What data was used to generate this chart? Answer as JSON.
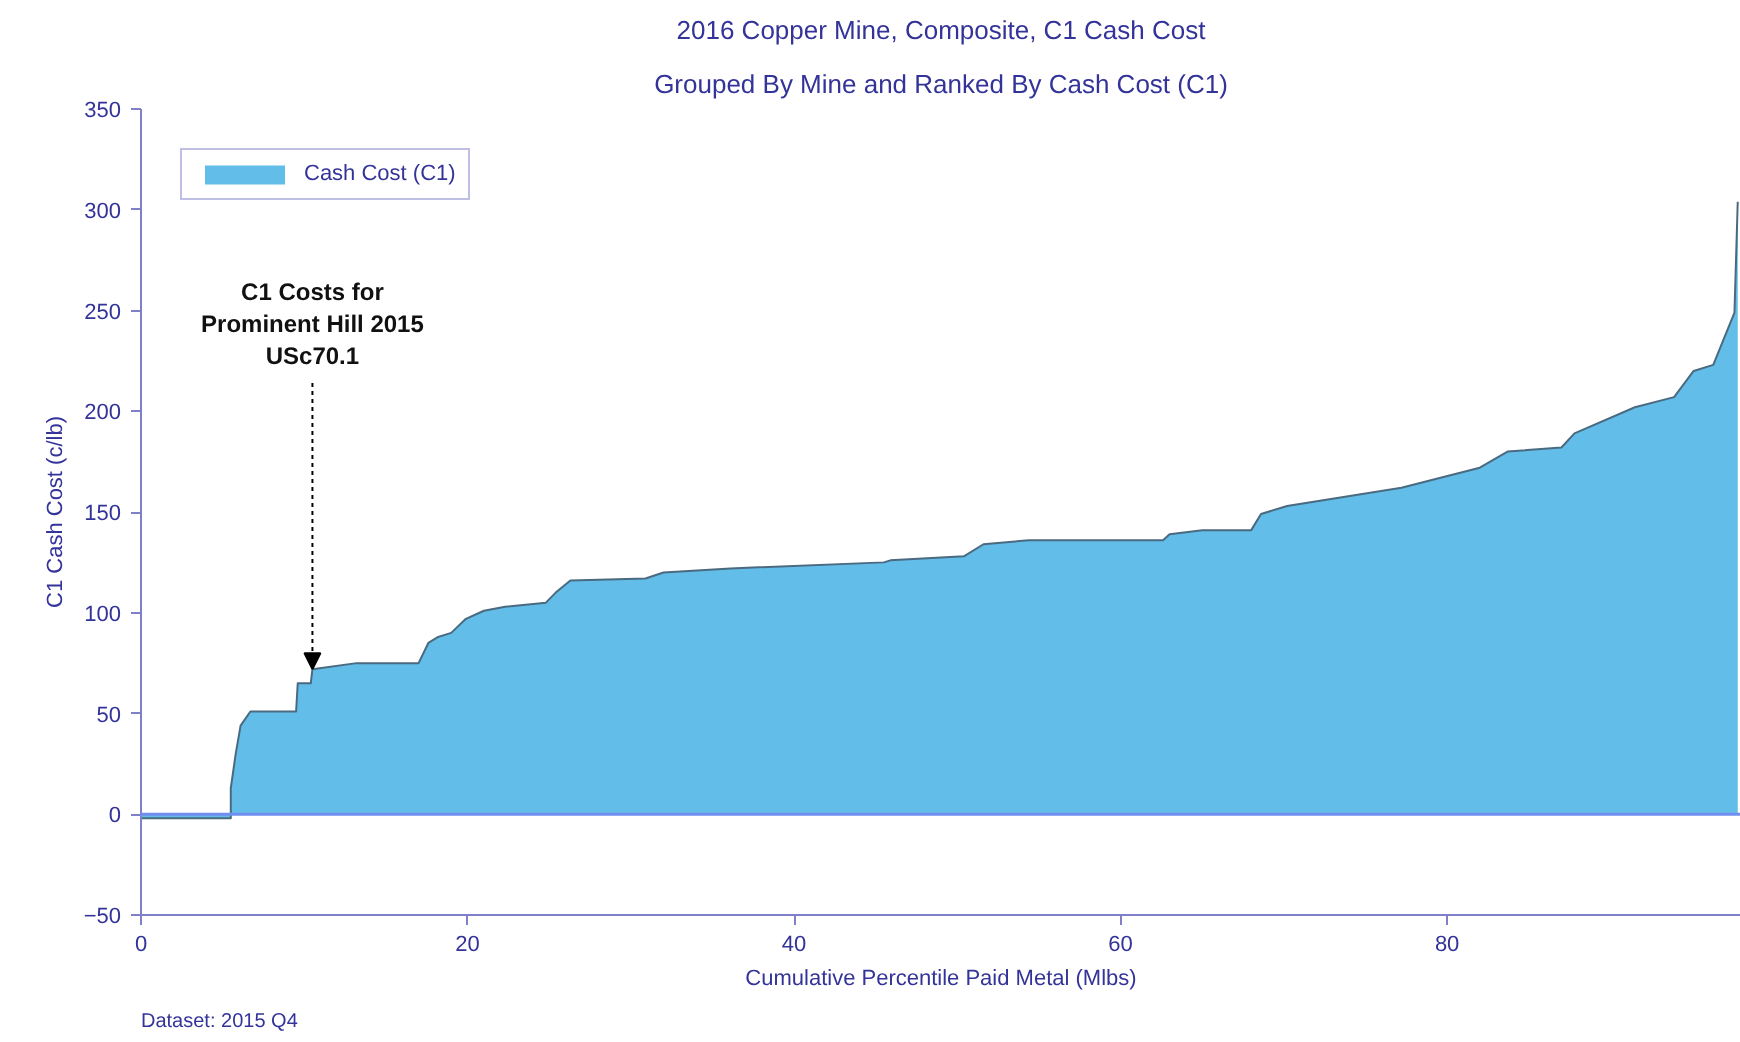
{
  "chart_data": {
    "type": "area",
    "title": "2016 Copper Mine, Composite, C1 Cash Cost",
    "subtitle": "Grouped By Mine and Ranked By Cash Cost (C1)",
    "xlabel": "Cumulative Percentile Paid Metal (Mlbs)",
    "ylabel": "C1 Cash Cost (c/lb)",
    "x": [
      0,
      5.5,
      5.5,
      5.8,
      6.1,
      6.7,
      9.5,
      9.6,
      10.4,
      10.5,
      13.2,
      17,
      17.6,
      18.2,
      19,
      19.9,
      21,
      22.3,
      24.8,
      25.4,
      26.3,
      30.9,
      32,
      36.1,
      45.5,
      45.9,
      50.4,
      51.6,
      54.4,
      62.6,
      63,
      65,
      68,
      68.6,
      70.2,
      77.2,
      82,
      83.7,
      87,
      87.8,
      91.5,
      93.9,
      95.1,
      96.3,
      97.6,
      97.8
    ],
    "series": [
      {
        "name": "Cash Cost (C1)",
        "color": "#63bde9",
        "values": [
          -2,
          -2,
          13,
          30,
          44,
          51,
          51,
          65,
          65,
          72,
          75,
          75,
          85,
          88,
          90,
          97,
          101,
          103,
          105,
          110,
          116,
          117,
          120,
          122,
          125,
          126,
          128,
          134,
          136,
          136,
          139,
          141,
          141,
          149,
          153,
          162,
          172,
          180,
          182,
          189,
          202,
          207,
          220,
          223,
          249,
          304
        ]
      }
    ],
    "xlim": [
      0,
      98
    ],
    "ylim": [
      -50,
      350
    ],
    "xticks": [
      0,
      20,
      40,
      60,
      80
    ],
    "yticks": [
      -50,
      0,
      50,
      100,
      150,
      200,
      250,
      300,
      350
    ],
    "grid": false,
    "legend": "top left",
    "ref_lines": [
      {
        "axis": "y",
        "value": 0,
        "color": "#6f8ff0"
      }
    ],
    "annotations": [
      {
        "text": "C1 Costs for\nProminent Hill 2015\nUSc70.1",
        "x": 10.5,
        "y": 72
      },
      "Dataset: 2015 Q4"
    ]
  }
}
